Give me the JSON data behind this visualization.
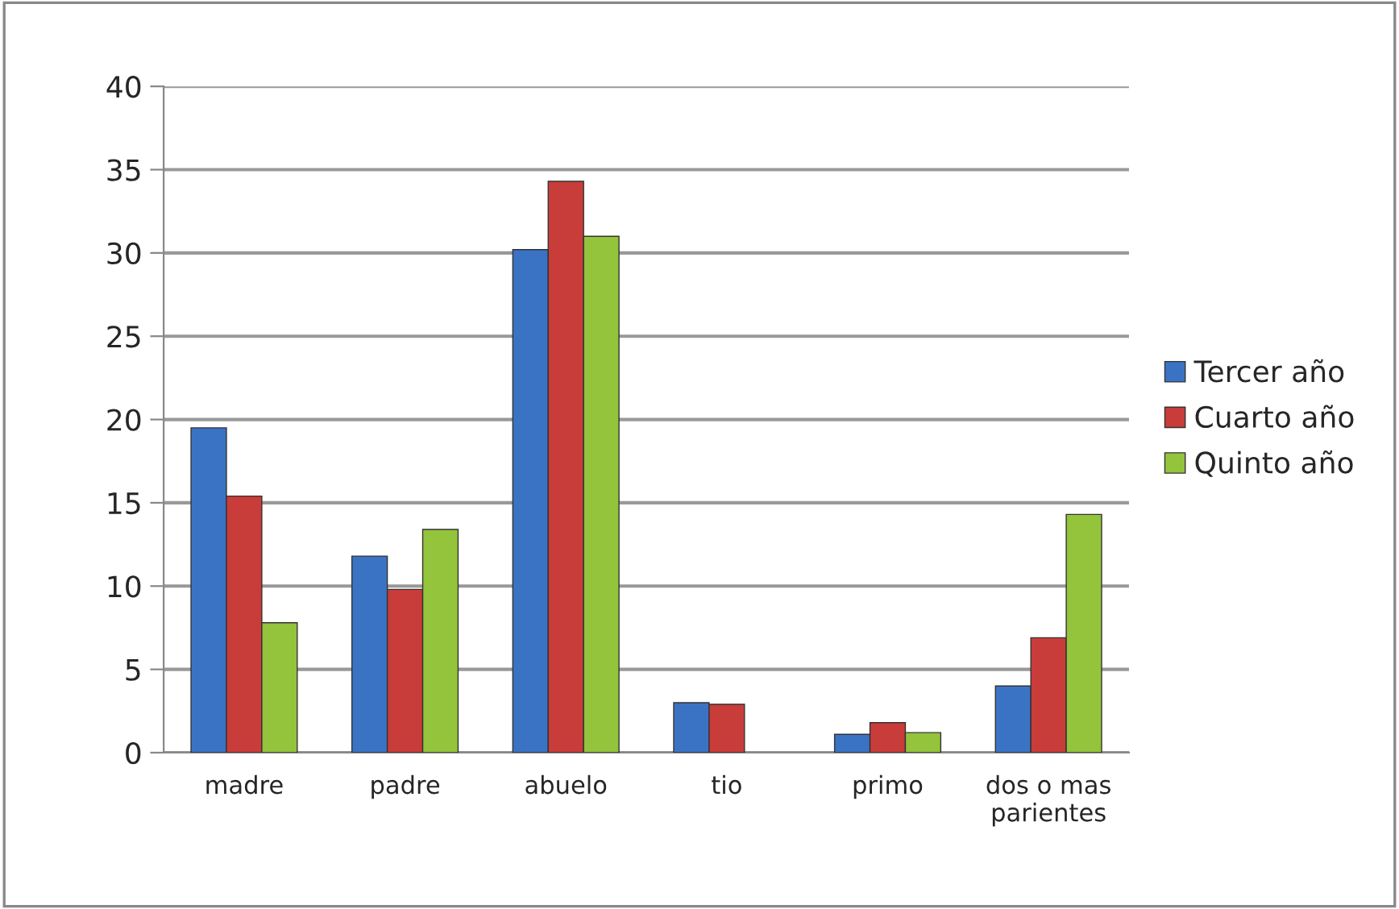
{
  "chart_data": {
    "type": "bar",
    "categories": [
      "madre",
      "padre",
      "abuelo",
      "tio",
      "primo",
      "dos o mas\nparientes"
    ],
    "series": [
      {
        "name": "Tercer año",
        "color": "#3b73c4",
        "values": [
          19.5,
          11.8,
          30.2,
          3.0,
          1.1,
          4.0
        ]
      },
      {
        "name": "Cuarto año",
        "color": "#c83c3a",
        "values": [
          15.4,
          9.8,
          34.3,
          2.9,
          1.8,
          6.9
        ]
      },
      {
        "name": "Quinto año",
        "color": "#94c33c",
        "values": [
          7.8,
          13.4,
          31.0,
          null,
          1.2,
          14.3
        ]
      }
    ],
    "ylim": [
      0,
      40
    ],
    "yticks": [
      0,
      5,
      10,
      15,
      20,
      25,
      30,
      35,
      40
    ],
    "grid": "y",
    "legend": "right"
  }
}
